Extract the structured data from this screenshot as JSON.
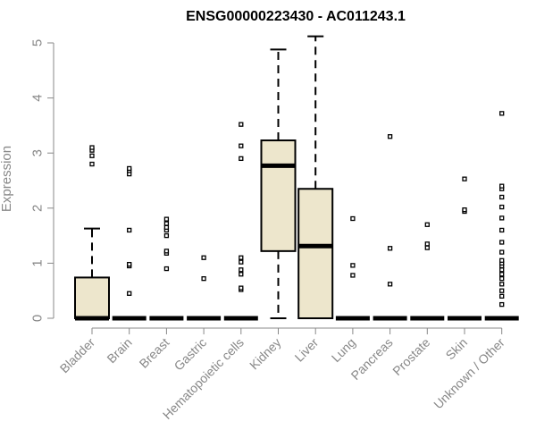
{
  "chart_data": {
    "type": "box",
    "title": "ENSG00000223430 - AC011243.1",
    "xlabel": "",
    "ylabel": "Expression",
    "ylim": [
      0,
      5
    ],
    "yticks": [
      "0",
      "1",
      "2",
      "3",
      "4",
      "5"
    ],
    "box_fill": "#ede6cc",
    "categories": [
      "Bladder",
      "Brain",
      "Breast",
      "Gastric",
      "Hematopoietic cells",
      "Kidney",
      "Liver",
      "Lung",
      "Pancreas",
      "Prostate",
      "Skin",
      "Unknown / Other"
    ],
    "boxes": [
      {
        "q1": 0,
        "median": 0,
        "q3": 0.74,
        "whisker_low": 0,
        "whisker_high": 1.63,
        "outliers": [
          2.8,
          2.95,
          3.05,
          3.1
        ]
      },
      {
        "q1": 0,
        "median": 0,
        "q3": 0,
        "whisker_low": 0,
        "whisker_high": 0,
        "outliers": [
          0.45,
          0.95,
          0.98,
          1.6,
          2.62,
          2.68,
          2.72
        ]
      },
      {
        "q1": 0,
        "median": 0,
        "q3": 0,
        "whisker_low": 0,
        "whisker_high": 0,
        "outliers": [
          0.9,
          1.18,
          1.22,
          1.5,
          1.6,
          1.65,
          1.72,
          1.8
        ]
      },
      {
        "q1": 0,
        "median": 0,
        "q3": 0,
        "whisker_low": 0,
        "whisker_high": 0,
        "outliers": [
          0.72,
          1.1
        ]
      },
      {
        "q1": 0,
        "median": 0,
        "q3": 0,
        "whisker_low": 0,
        "whisker_high": 0,
        "outliers": [
          0.52,
          0.55,
          0.8,
          0.88,
          1.02,
          1.1,
          2.9,
          3.13,
          3.52
        ]
      },
      {
        "q1": 1.22,
        "median": 2.77,
        "q3": 3.23,
        "whisker_low": 0,
        "whisker_high": 4.88,
        "outliers": []
      },
      {
        "q1": 0,
        "median": 1.31,
        "q3": 2.35,
        "whisker_low": 0,
        "whisker_high": 5.12,
        "outliers": []
      },
      {
        "q1": 0,
        "median": 0,
        "q3": 0,
        "whisker_low": 0,
        "whisker_high": 0,
        "outliers": [
          0.78,
          0.96,
          1.81
        ]
      },
      {
        "q1": 0,
        "median": 0,
        "q3": 0,
        "whisker_low": 0,
        "whisker_high": 0,
        "outliers": [
          0.62,
          1.27,
          3.3
        ]
      },
      {
        "q1": 0,
        "median": 0,
        "q3": 0,
        "whisker_low": 0,
        "whisker_high": 0,
        "outliers": [
          1.28,
          1.35,
          1.7
        ]
      },
      {
        "q1": 0,
        "median": 0,
        "q3": 0,
        "whisker_low": 0,
        "whisker_high": 0,
        "outliers": [
          1.94,
          1.97,
          2.53
        ]
      },
      {
        "q1": 0,
        "median": 0,
        "q3": 0,
        "whisker_low": 0,
        "whisker_high": 0,
        "outliers": [
          0.25,
          0.4,
          0.5,
          0.62,
          0.72,
          0.8,
          0.88,
          0.95,
          1.0,
          1.05,
          1.2,
          1.38,
          1.6,
          1.82,
          2.02,
          2.2,
          2.35,
          2.4,
          3.72
        ]
      }
    ]
  }
}
